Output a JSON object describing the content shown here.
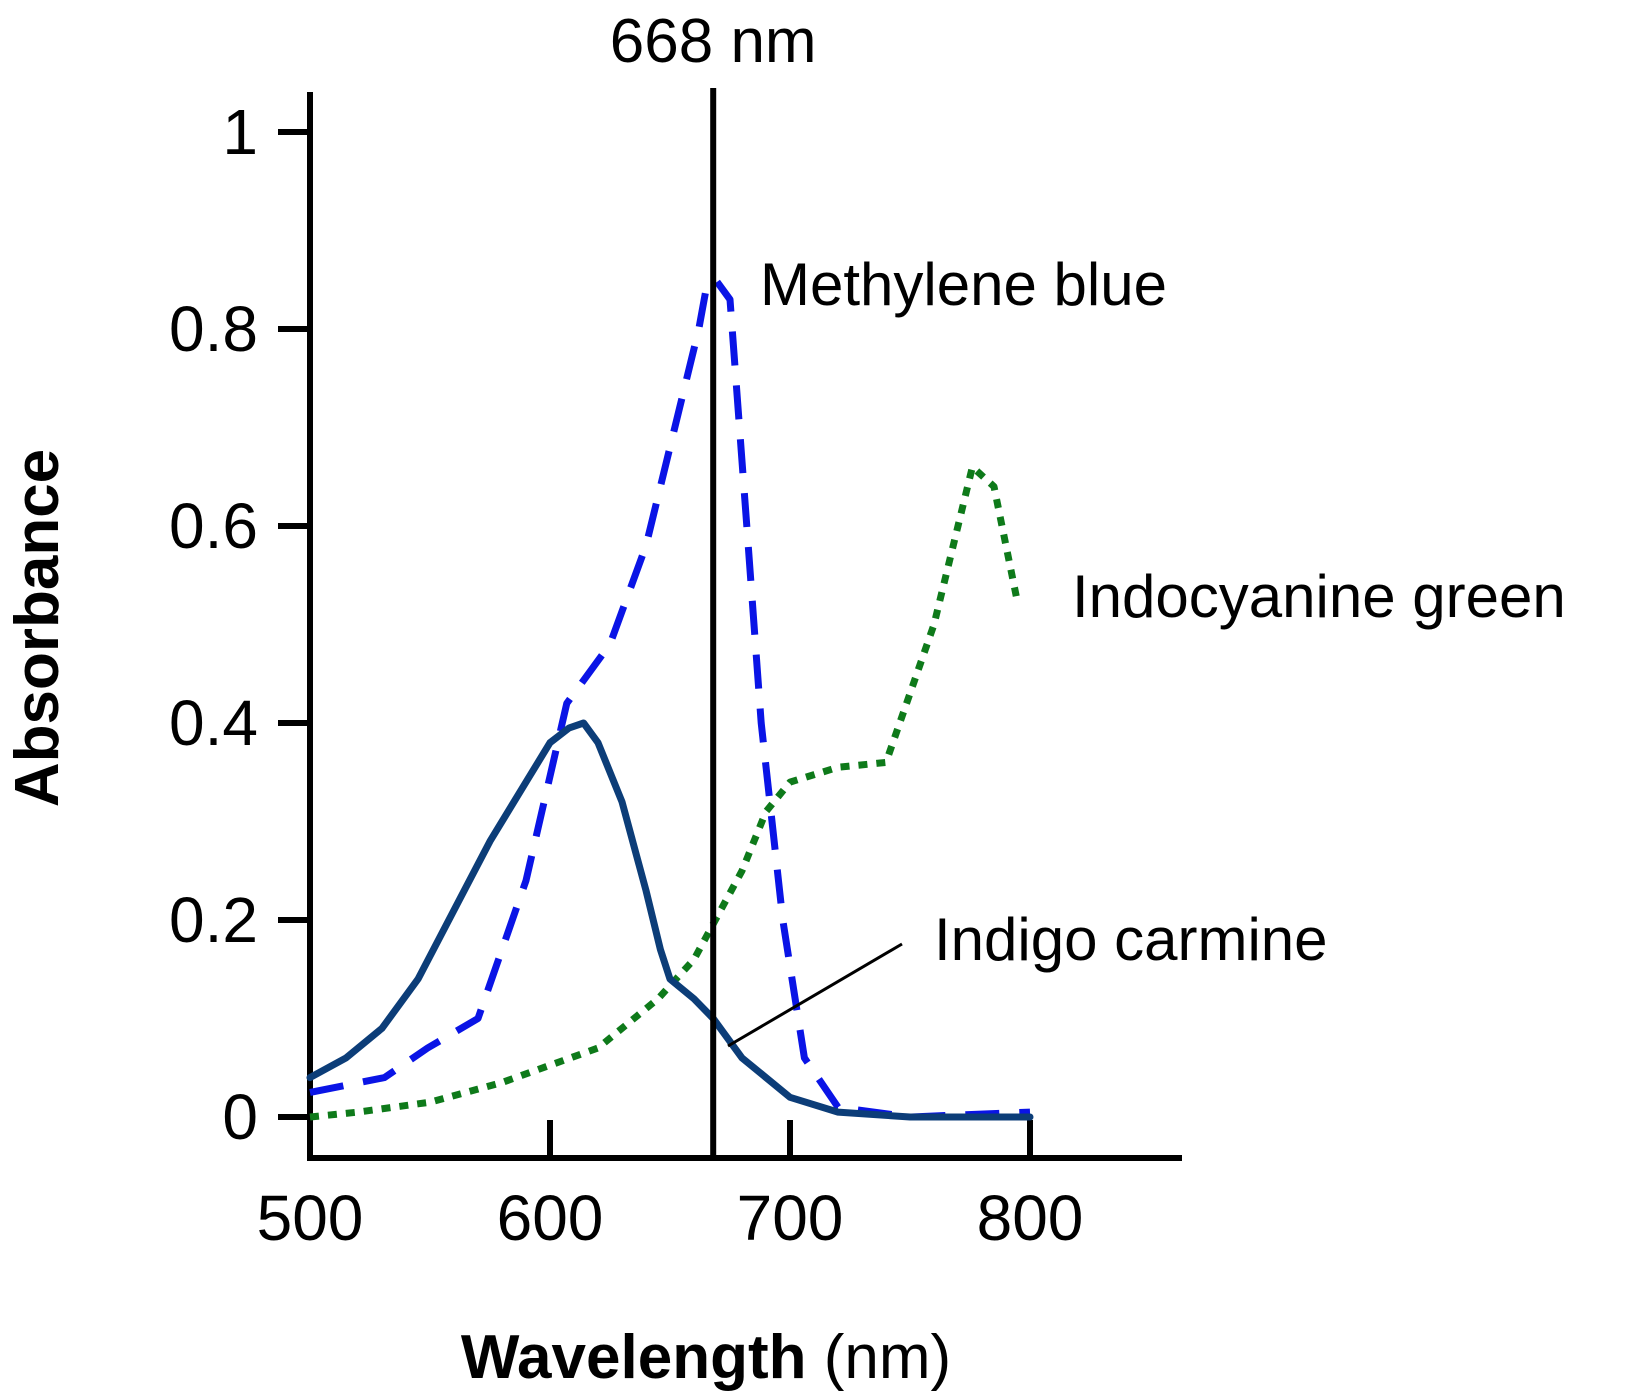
{
  "chart_data": {
    "type": "line",
    "title": "",
    "xlabel_bold": "Wavelength",
    "xlabel_rest": " (nm)",
    "ylabel": "Absorbance",
    "xlim": [
      500,
      860
    ],
    "ylim": [
      0,
      1
    ],
    "x_ticks": [
      500,
      600,
      700,
      800
    ],
    "y_ticks": [
      0,
      0.2,
      0.4,
      0.6,
      0.8,
      1
    ],
    "y_tick_labels": [
      "0",
      "0.2",
      "0.4",
      "0.6",
      "0.8",
      "1"
    ],
    "grid": false,
    "legend": "inline labels",
    "reference_line": {
      "x": 668,
      "label": "668 nm",
      "color": "#000000"
    },
    "series": [
      {
        "name": "Methylene blue",
        "style": "dashed",
        "color": "#0a14e6",
        "x": [
          500,
          531,
          549,
          570,
          590,
          607,
          625,
          640,
          654,
          662,
          665,
          669,
          675,
          682,
          688,
          697,
          706,
          720,
          750,
          800
        ],
        "y": [
          0.025,
          0.04,
          0.07,
          0.1,
          0.24,
          0.42,
          0.48,
          0.58,
          0.72,
          0.8,
          0.84,
          0.85,
          0.83,
          0.6,
          0.4,
          0.2,
          0.06,
          0.01,
          0.0,
          0.005
        ]
      },
      {
        "name": "Indocyanine green",
        "style": "dotted",
        "color": "#0e7a1a",
        "x": [
          500,
          520,
          550,
          580,
          620,
          645,
          660,
          680,
          690,
          700,
          720,
          740,
          750,
          760,
          770,
          776,
          785,
          790,
          795
        ],
        "y": [
          0.0,
          0.005,
          0.015,
          0.035,
          0.07,
          0.12,
          0.16,
          0.25,
          0.31,
          0.34,
          0.355,
          0.36,
          0.43,
          0.5,
          0.6,
          0.66,
          0.64,
          0.58,
          0.52
        ]
      },
      {
        "name": "Indigo carmine",
        "style": "solid",
        "color": "#0c3d78",
        "x": [
          500,
          515,
          530,
          545,
          560,
          575,
          590,
          600,
          608,
          614,
          620,
          630,
          640,
          646,
          650,
          660,
          668,
          680,
          700,
          720,
          750,
          800
        ],
        "y": [
          0.04,
          0.06,
          0.09,
          0.14,
          0.21,
          0.28,
          0.34,
          0.38,
          0.395,
          0.4,
          0.38,
          0.32,
          0.23,
          0.17,
          0.14,
          0.12,
          0.1,
          0.06,
          0.02,
          0.005,
          0.0,
          0.0
        ]
      }
    ],
    "annotations": {
      "methylene_blue": "Methylene blue",
      "indocyanine_green": "Indocyanine green",
      "indigo_carmine": "Indigo carmine"
    }
  }
}
